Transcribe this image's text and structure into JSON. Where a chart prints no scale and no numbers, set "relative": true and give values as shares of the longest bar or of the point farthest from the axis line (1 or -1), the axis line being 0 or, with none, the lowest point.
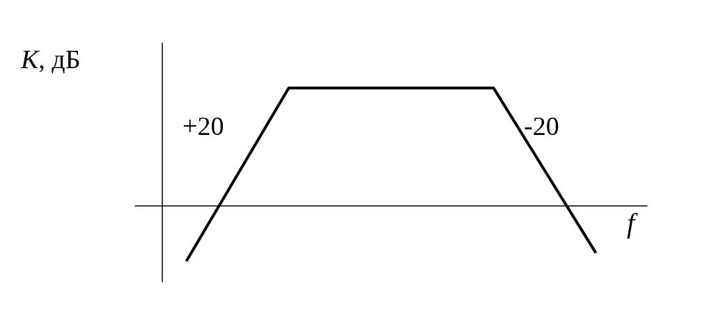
{
  "chart_data": {
    "type": "line",
    "relative": true,
    "xlabel": "f",
    "ylabel": "K, дБ",
    "categories": [
      null,
      null,
      null,
      null,
      null
    ],
    "series": [
      {
        "color": "#000000",
        "values": [
          -0.47,
          1,
          1,
          1,
          -0.4
        ]
      }
    ],
    "annotations": [
      "+20",
      "-20"
    ],
    "grid": false,
    "marker": "none",
    "line_style": "solid"
  }
}
